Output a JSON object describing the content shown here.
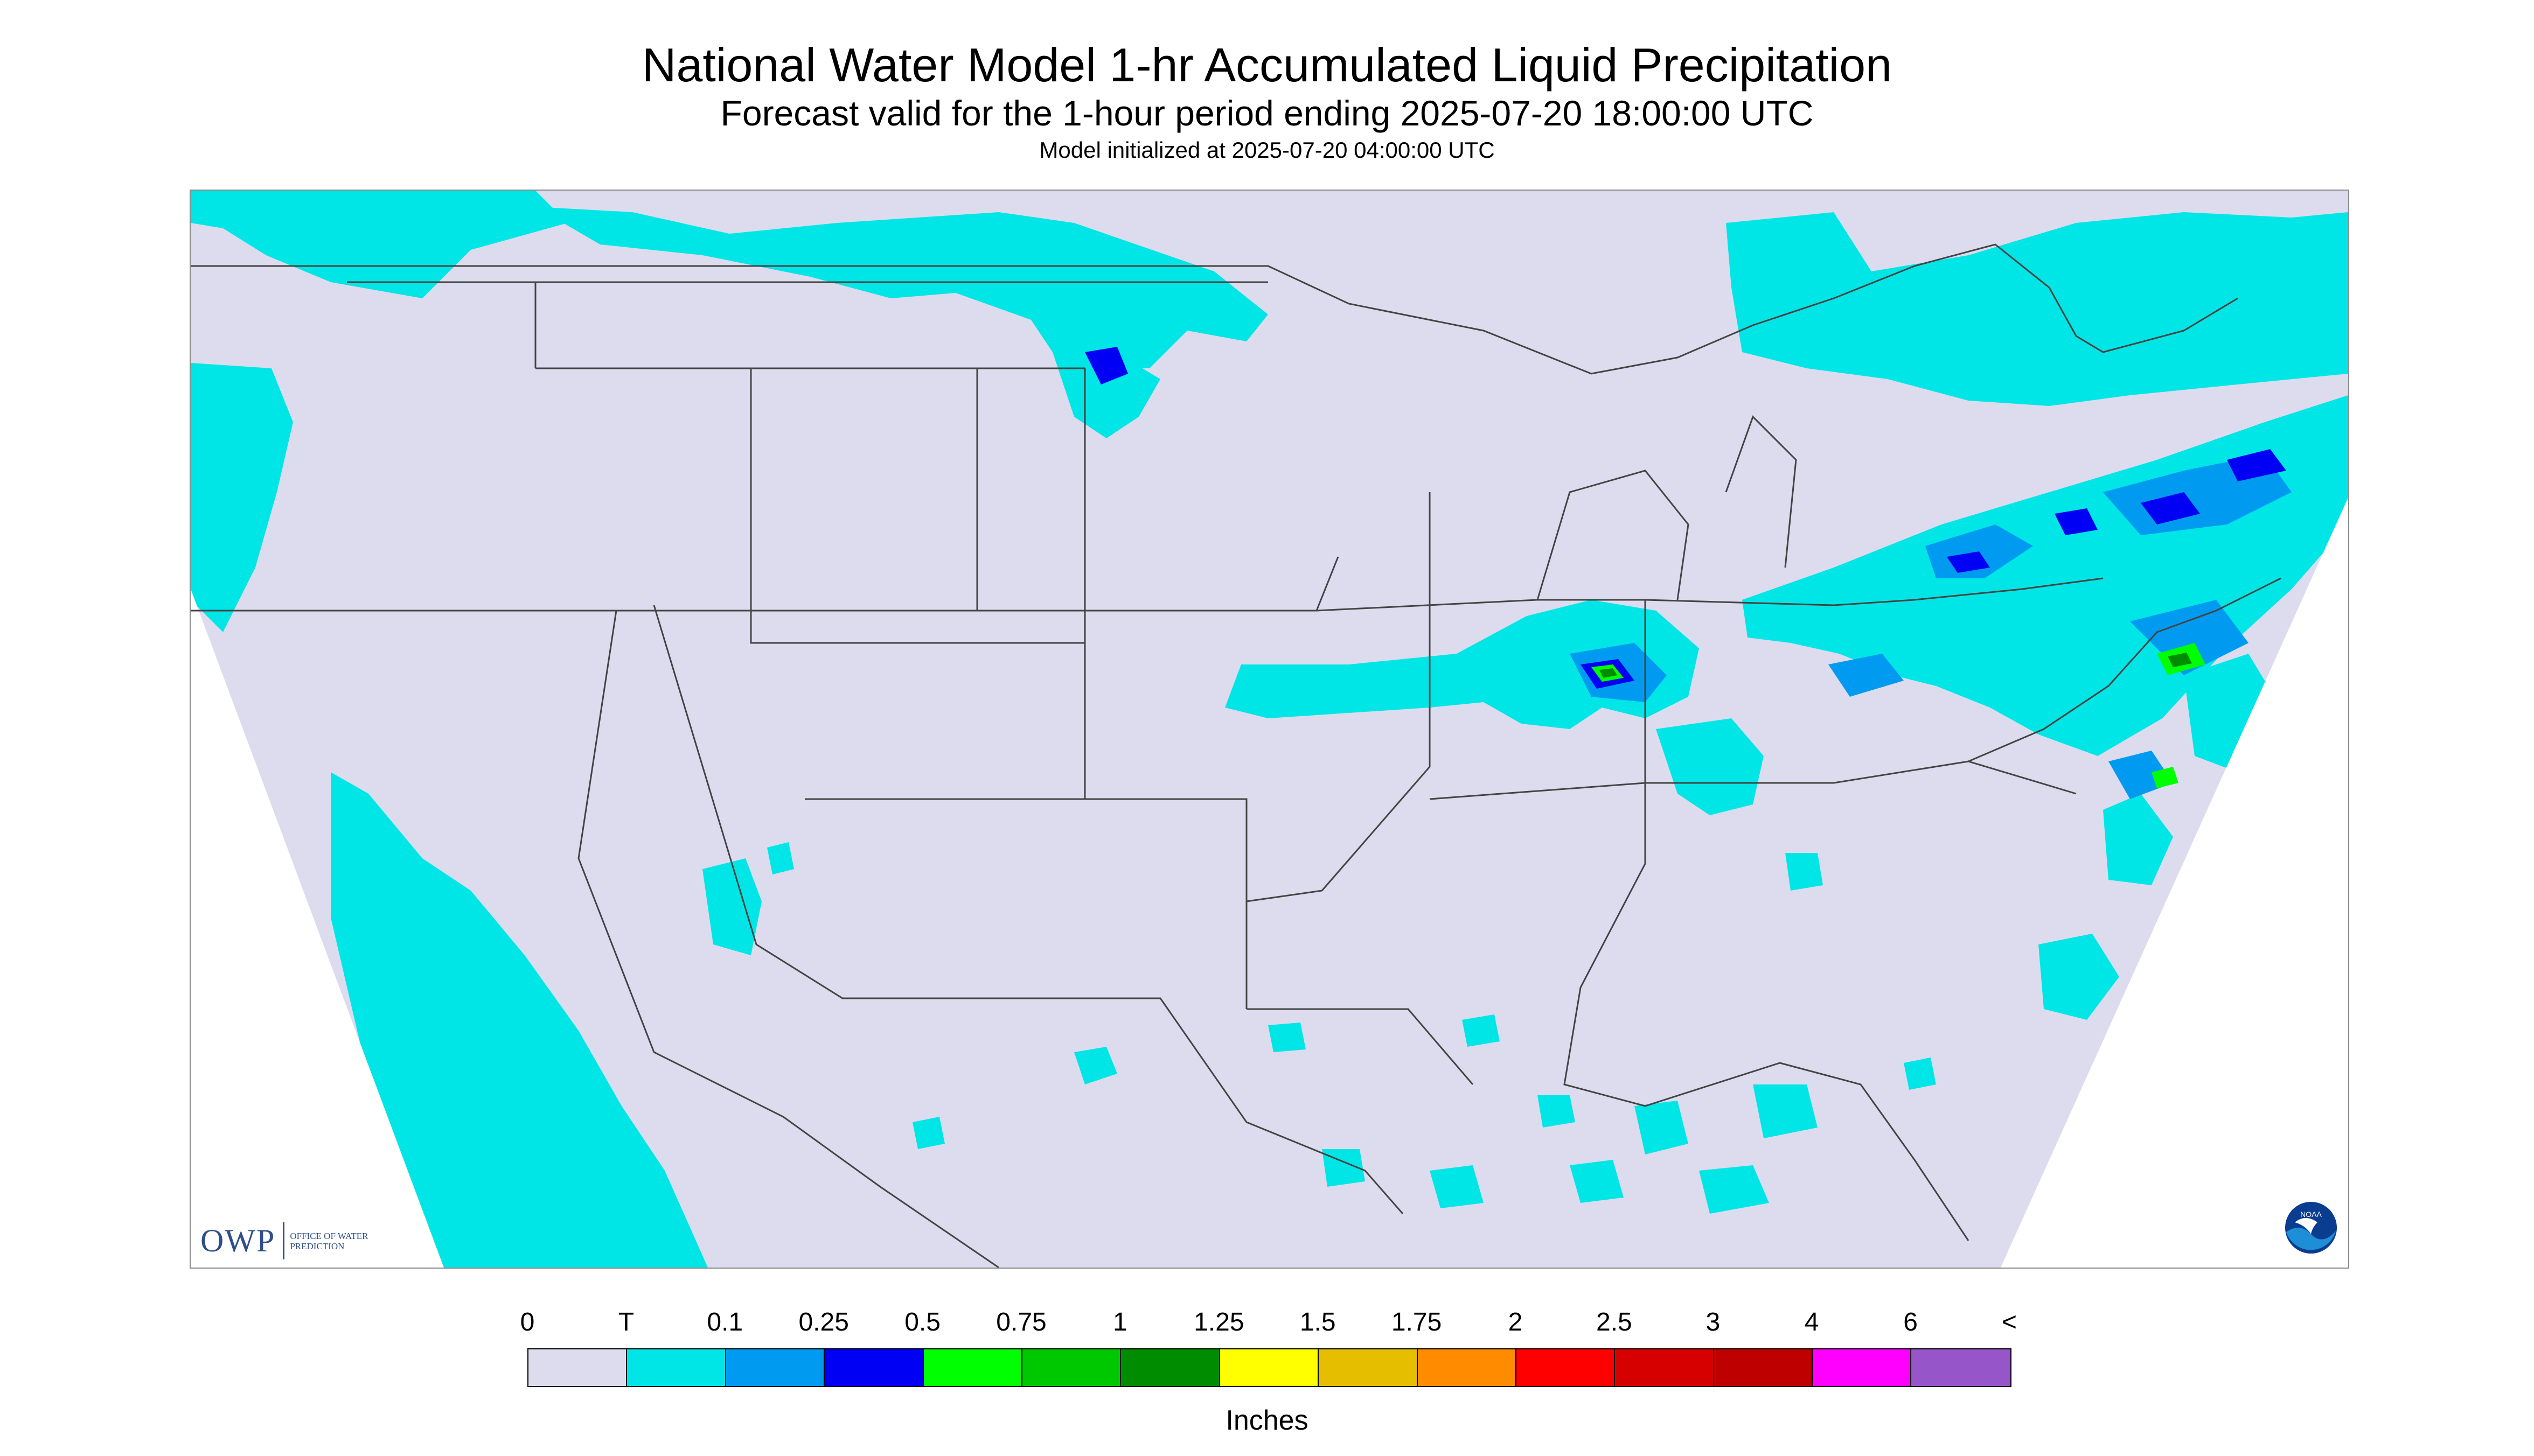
{
  "header": {
    "title": "National Water Model 1-hr Accumulated Liquid Precipitation",
    "subtitle": "Forecast valid for the 1-hour period ending 2025-07-20 18:00:00 UTC",
    "init_line": "Model initialized at 2025-07-20 04:00:00 UTC"
  },
  "map": {
    "background_color": "#dcdcee",
    "outside_domain_color": "#ffffff",
    "boundary_color": "#444444",
    "precip_areas": [
      {
        "region": "Pacific Northwest coast and British Columbia",
        "category": "T"
      },
      {
        "region": "Southern Canada plains / northern North Dakota",
        "category": "T"
      },
      {
        "region": "Northern Minnesota border",
        "category": "0.25"
      },
      {
        "region": "Iowa, Illinois, Indiana band",
        "category": "0.1"
      },
      {
        "region": "Central Indiana",
        "category": "1"
      },
      {
        "region": "Ontario, Quebec and New England",
        "category": "0.25"
      },
      {
        "region": "Western Atlantic off New England",
        "category": "1"
      },
      {
        "region": "Gulf of Mexico scattered cells",
        "category": "T"
      },
      {
        "region": "Eastern Pacific off Mexico",
        "category": "T"
      },
      {
        "region": "Tennessee and Kentucky",
        "category": "0.1"
      }
    ]
  },
  "logos": {
    "owp_abbr": "OWP",
    "owp_full": "OFFICE OF WATER PREDICTION",
    "noaa": "NOAA"
  },
  "legend": {
    "labels": [
      "0",
      "T",
      "0.1",
      "0.25",
      "0.5",
      "0.75",
      "1",
      "1.25",
      "1.5",
      "1.75",
      "2",
      "2.5",
      "3",
      "4",
      "6",
      "<"
    ],
    "colors": [
      "#dcdcee",
      "#00e6e6",
      "#009bf0",
      "#0000f5",
      "#00ff00",
      "#00c800",
      "#008c00",
      "#ffff00",
      "#e6be00",
      "#ff8c00",
      "#ff0000",
      "#d70000",
      "#be0000",
      "#ff00ff",
      "#9655c8"
    ],
    "units": "Inches"
  }
}
